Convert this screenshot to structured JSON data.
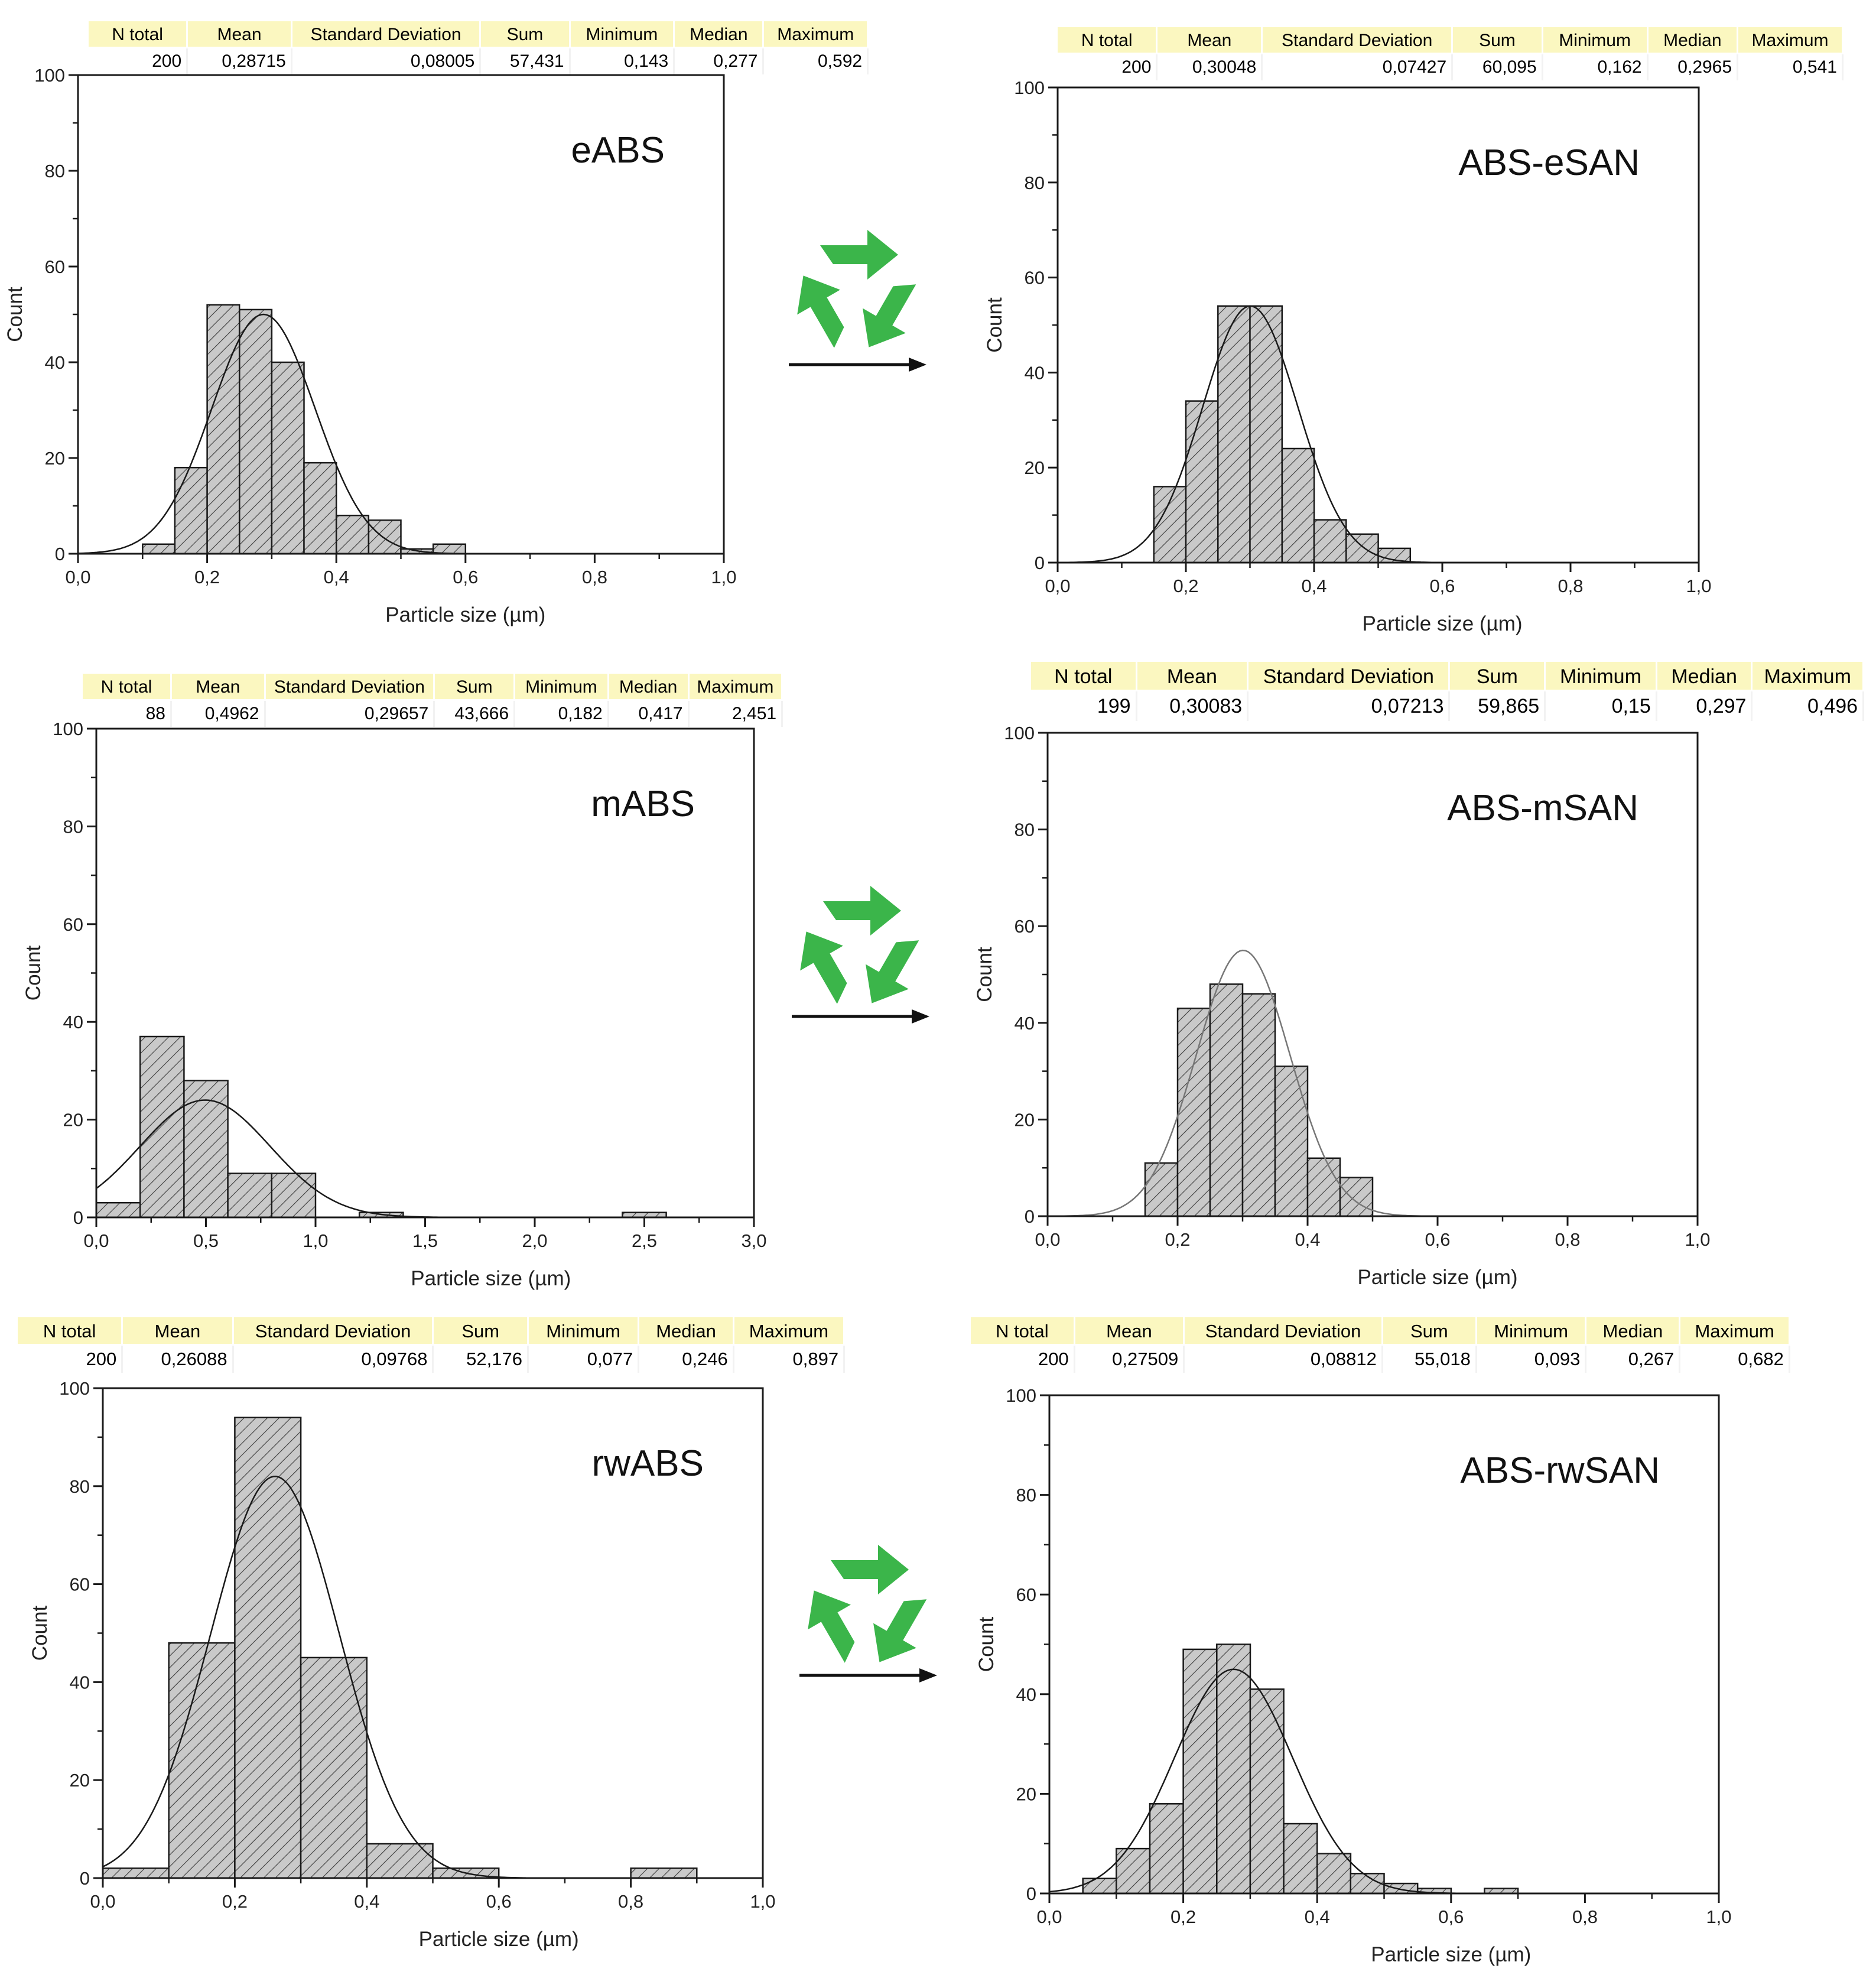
{
  "stat_headers": [
    "N total",
    "Mean",
    "Standard Deviation",
    "Sum",
    "Minimum",
    "Median",
    "Maximum"
  ],
  "panels": [
    {
      "stats": [
        "200",
        "0,28715",
        "0,08005",
        "57,431",
        "0,143",
        "0,277",
        "0,592"
      ],
      "chart_data": {
        "type": "bar",
        "title": "eABS",
        "xlabel": "Particle size (µm)",
        "ylabel": "Count",
        "xlim": [
          0,
          1.0
        ],
        "ylim": [
          0,
          100
        ],
        "xticks": [
          "0,0",
          "0,2",
          "0,4",
          "0,6",
          "0,8",
          "1,0"
        ],
        "yticks": [
          "0",
          "20",
          "40",
          "60",
          "80",
          "100"
        ],
        "bin_width": 0.05,
        "bins": [
          {
            "x": 0.1,
            "count": 2
          },
          {
            "x": 0.15,
            "count": 18
          },
          {
            "x": 0.2,
            "count": 52
          },
          {
            "x": 0.25,
            "count": 51
          },
          {
            "x": 0.3,
            "count": 40
          },
          {
            "x": 0.35,
            "count": 19
          },
          {
            "x": 0.4,
            "count": 8
          },
          {
            "x": 0.45,
            "count": 7
          },
          {
            "x": 0.5,
            "count": 1
          },
          {
            "x": 0.55,
            "count": 2
          }
        ],
        "fit": {
          "mean": 0.28715,
          "sd": 0.08005,
          "peak": 50
        }
      }
    },
    {
      "stats": [
        "200",
        "0,30048",
        "0,07427",
        "60,095",
        "0,162",
        "0,2965",
        "0,541"
      ],
      "chart_data": {
        "type": "bar",
        "title": "ABS-eSAN",
        "xlabel": "Particle size (µm)",
        "ylabel": "Count",
        "xlim": [
          0,
          1.0
        ],
        "ylim": [
          0,
          100
        ],
        "xticks": [
          "0,0",
          "0,2",
          "0,4",
          "0,6",
          "0,8",
          "1,0"
        ],
        "yticks": [
          "0",
          "20",
          "40",
          "60",
          "80",
          "100"
        ],
        "bin_width": 0.05,
        "bins": [
          {
            "x": 0.15,
            "count": 16
          },
          {
            "x": 0.2,
            "count": 34
          },
          {
            "x": 0.25,
            "count": 54
          },
          {
            "x": 0.3,
            "count": 54
          },
          {
            "x": 0.35,
            "count": 24
          },
          {
            "x": 0.4,
            "count": 9
          },
          {
            "x": 0.45,
            "count": 6
          },
          {
            "x": 0.5,
            "count": 3
          }
        ],
        "fit": {
          "mean": 0.30048,
          "sd": 0.07427,
          "peak": 54
        }
      }
    },
    {
      "stats": [
        "88",
        "0,4962",
        "0,29657",
        "43,666",
        "0,182",
        "0,417",
        "2,451"
      ],
      "chart_data": {
        "type": "bar",
        "title": "mABS",
        "xlabel": "Particle size (µm)",
        "ylabel": "Count",
        "xlim": [
          0,
          3.0
        ],
        "ylim": [
          0,
          100
        ],
        "xticks": [
          "0,0",
          "0,5",
          "1,0",
          "1,5",
          "2,0",
          "2,5",
          "3,0"
        ],
        "yticks": [
          "0",
          "20",
          "40",
          "60",
          "80",
          "100"
        ],
        "bin_width": 0.2,
        "bins": [
          {
            "x": 0.0,
            "count": 3
          },
          {
            "x": 0.2,
            "count": 37
          },
          {
            "x": 0.4,
            "count": 28
          },
          {
            "x": 0.6,
            "count": 9
          },
          {
            "x": 0.8,
            "count": 9
          },
          {
            "x": 1.2,
            "count": 1
          },
          {
            "x": 2.4,
            "count": 1
          }
        ],
        "fit": {
          "mean": 0.4962,
          "sd": 0.29657,
          "peak": 24
        }
      }
    },
    {
      "stats": [
        "199",
        "0,30083",
        "0,07213",
        "59,865",
        "0,15",
        "0,297",
        "0,496"
      ],
      "chart_data": {
        "type": "bar",
        "title": "ABS-mSAN",
        "xlabel": "Particle size (µm)",
        "ylabel": "Count",
        "xlim": [
          0,
          1.0
        ],
        "ylim": [
          0,
          100
        ],
        "xticks": [
          "0,0",
          "0,2",
          "0,4",
          "0,6",
          "0,8",
          "1,0"
        ],
        "yticks": [
          "0",
          "20",
          "40",
          "60",
          "80",
          "100"
        ],
        "bin_width": 0.05,
        "bins": [
          {
            "x": 0.15,
            "count": 11
          },
          {
            "x": 0.2,
            "count": 43
          },
          {
            "x": 0.25,
            "count": 48
          },
          {
            "x": 0.3,
            "count": 46
          },
          {
            "x": 0.35,
            "count": 31
          },
          {
            "x": 0.4,
            "count": 12
          },
          {
            "x": 0.45,
            "count": 8
          }
        ],
        "fit": {
          "mean": 0.30083,
          "sd": 0.07213,
          "peak": 55
        }
      }
    },
    {
      "stats": [
        "200",
        "0,26088",
        "0,09768",
        "52,176",
        "0,077",
        "0,246",
        "0,897"
      ],
      "chart_data": {
        "type": "bar",
        "title": "rwABS",
        "xlabel": "Particle size (µm)",
        "ylabel": "Count",
        "xlim": [
          0,
          1.0
        ],
        "ylim": [
          0,
          100
        ],
        "xticks": [
          "0,0",
          "0,2",
          "0,4",
          "0,6",
          "0,8",
          "1,0"
        ],
        "yticks": [
          "0",
          "20",
          "40",
          "60",
          "80",
          "100"
        ],
        "bin_width": 0.1,
        "bins": [
          {
            "x": 0.0,
            "count": 2
          },
          {
            "x": 0.1,
            "count": 48
          },
          {
            "x": 0.2,
            "count": 94
          },
          {
            "x": 0.3,
            "count": 45
          },
          {
            "x": 0.4,
            "count": 7
          },
          {
            "x": 0.5,
            "count": 2
          },
          {
            "x": 0.8,
            "count": 2
          }
        ],
        "fit": {
          "mean": 0.26088,
          "sd": 0.09768,
          "peak": 82
        }
      }
    },
    {
      "stats": [
        "200",
        "0,27509",
        "0,08812",
        "55,018",
        "0,093",
        "0,267",
        "0,682"
      ],
      "chart_data": {
        "type": "bar",
        "title": "ABS-rwSAN",
        "xlabel": "Particle size (µm)",
        "ylabel": "Count",
        "xlim": [
          0,
          1.0
        ],
        "ylim": [
          0,
          100
        ],
        "xticks": [
          "0,0",
          "0,2",
          "0,4",
          "0,6",
          "0,8",
          "1,0"
        ],
        "yticks": [
          "0",
          "20",
          "40",
          "60",
          "80",
          "100"
        ],
        "bin_width": 0.05,
        "bins": [
          {
            "x": 0.05,
            "count": 3
          },
          {
            "x": 0.1,
            "count": 9
          },
          {
            "x": 0.15,
            "count": 18
          },
          {
            "x": 0.2,
            "count": 49
          },
          {
            "x": 0.25,
            "count": 50
          },
          {
            "x": 0.3,
            "count": 41
          },
          {
            "x": 0.35,
            "count": 14
          },
          {
            "x": 0.4,
            "count": 8
          },
          {
            "x": 0.45,
            "count": 4
          },
          {
            "x": 0.5,
            "count": 2
          },
          {
            "x": 0.55,
            "count": 1
          },
          {
            "x": 0.65,
            "count": 1
          }
        ],
        "fit": {
          "mean": 0.27509,
          "sd": 0.08812,
          "peak": 45
        }
      }
    }
  ],
  "recycle_icon": "recycle-icon",
  "arrow_icon": "arrow-right-icon",
  "colors": {
    "bar_fill": "#c9c9c9",
    "hatch": "#3a3a3a",
    "table_header": "#fbf7c0",
    "recycle_green": "#3bb54a"
  }
}
